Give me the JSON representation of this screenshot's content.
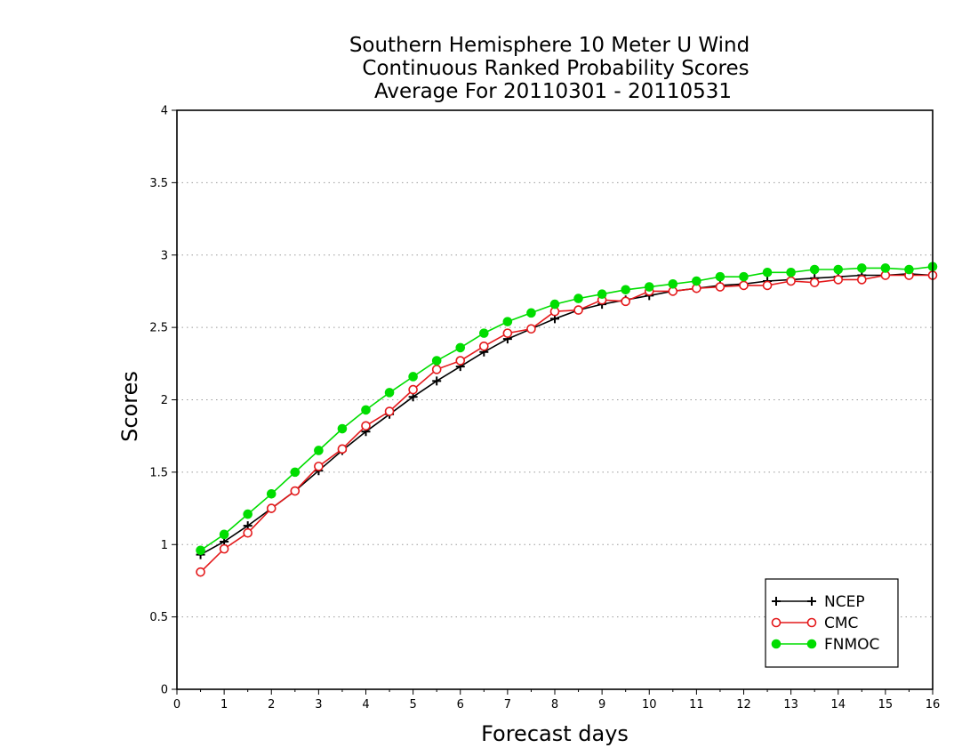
{
  "chart_data": {
    "type": "line",
    "title_lines": [
      "Southern Hemisphere 10 Meter U Wind",
      "Continuous Ranked Probability Scores",
      "Average For 20110301 - 20110531"
    ],
    "xlabel": "Forecast days",
    "ylabel": "Scores",
    "xlim": [
      0,
      16
    ],
    "ylim": [
      0,
      4
    ],
    "x_ticks": [
      0,
      1,
      2,
      3,
      4,
      5,
      6,
      7,
      8,
      9,
      10,
      11,
      12,
      13,
      14,
      15,
      16
    ],
    "x_tick_labels": [
      "0",
      "1",
      "2",
      "3",
      "4",
      "5",
      "6",
      "7",
      "8",
      "9",
      "10",
      "11",
      "12",
      "13",
      "14",
      "15",
      "16"
    ],
    "y_ticks": [
      0,
      0.5,
      1,
      1.5,
      2,
      2.5,
      3,
      3.5,
      4
    ],
    "y_tick_labels": [
      "0",
      "0.5",
      "1",
      "1.5",
      "2",
      "2.5",
      "3",
      "3.5",
      "4"
    ],
    "grid": "horizontal dotted",
    "legend_position": "bottom-right",
    "x": [
      0.5,
      1,
      1.5,
      2,
      2.5,
      3,
      3.5,
      4,
      4.5,
      5,
      5.5,
      6,
      6.5,
      7,
      7.5,
      8,
      8.5,
      9,
      9.5,
      10,
      10.5,
      11,
      11.5,
      12,
      12.5,
      13,
      13.5,
      14,
      14.5,
      15,
      15.5,
      16
    ],
    "series": [
      {
        "name": "NCEP",
        "color": "#000000",
        "marker": "plus",
        "values": [
          0.93,
          1.02,
          1.13,
          1.25,
          1.37,
          1.51,
          1.65,
          1.78,
          1.9,
          2.02,
          2.13,
          2.23,
          2.33,
          2.42,
          2.49,
          2.56,
          2.62,
          2.66,
          2.69,
          2.72,
          2.75,
          2.77,
          2.79,
          2.8,
          2.82,
          2.83,
          2.84,
          2.85,
          2.86,
          2.86,
          2.87,
          2.86
        ]
      },
      {
        "name": "CMC",
        "color": "#e41a1c",
        "marker": "open-circle",
        "values": [
          0.81,
          0.97,
          1.08,
          1.25,
          1.37,
          1.54,
          1.66,
          1.82,
          1.92,
          2.07,
          2.21,
          2.27,
          2.37,
          2.46,
          2.49,
          2.61,
          2.62,
          2.69,
          2.68,
          2.75,
          2.75,
          2.77,
          2.78,
          2.79,
          2.79,
          2.82,
          2.81,
          2.83,
          2.83,
          2.86,
          2.86,
          2.86
        ]
      },
      {
        "name": "FNMOC",
        "color": "#00dd00",
        "marker": "filled-circle",
        "values": [
          0.96,
          1.07,
          1.21,
          1.35,
          1.5,
          1.65,
          1.8,
          1.93,
          2.05,
          2.16,
          2.27,
          2.36,
          2.46,
          2.54,
          2.6,
          2.66,
          2.7,
          2.73,
          2.76,
          2.78,
          2.8,
          2.82,
          2.85,
          2.85,
          2.88,
          2.88,
          2.9,
          2.9,
          2.91,
          2.91,
          2.9,
          2.92
        ]
      }
    ]
  }
}
